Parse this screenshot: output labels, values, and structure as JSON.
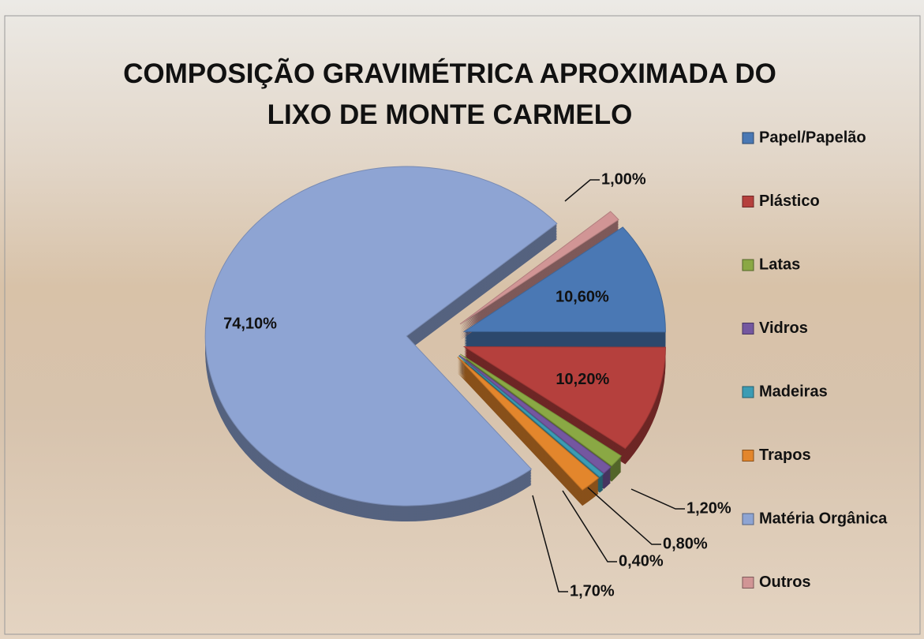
{
  "chart_data": {
    "type": "pie",
    "title": "COMPOSIÇÃO GRAVIMÉTRICA APROXIMADA DO LIXO DE MONTE CARMELO",
    "categories": [
      "Papel/Papelão",
      "Plástico",
      "Latas",
      "Vidros",
      "Madeiras",
      "Trapos",
      "Matéria Orgânica",
      "Outros"
    ],
    "values": [
      10.6,
      10.2,
      1.2,
      0.8,
      0.4,
      1.7,
      74.1,
      1.0
    ],
    "value_labels": [
      "10,60%",
      "10,20%",
      "1,20%",
      "0,80%",
      "0,40%",
      "1,70%",
      "74,10%",
      "1,00%"
    ],
    "colors": [
      "#4a78b4",
      "#b5403d",
      "#8aa844",
      "#7457a0",
      "#3c9cb4",
      "#e3862c",
      "#8ea4d3",
      "#d19595"
    ],
    "legend": "right"
  }
}
